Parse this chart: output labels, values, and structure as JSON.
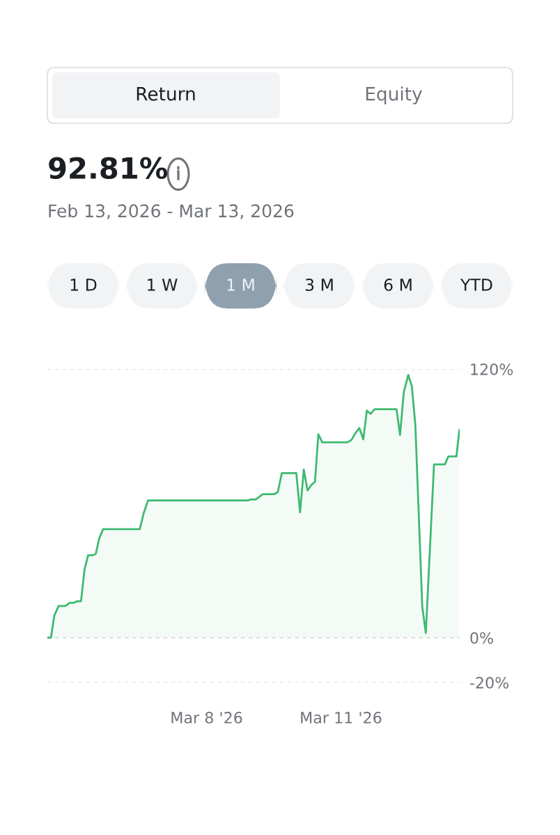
{
  "chart_data": {
    "type": "area",
    "title": "92.81%",
    "subtitle": "Feb 13, 2026 - Mar 13, 2026",
    "annotations": [
      "Return",
      "Equity",
      "1 D",
      "1 W",
      "1 M",
      "3 M",
      "6 M",
      "YTD"
    ],
    "x": [
      "2026-03-04T10:40",
      "2026-03-04T12:35",
      "2026-03-04T14:24",
      "2026-03-04T16:42",
      "2026-03-04T20:24",
      "2026-03-04T22:36",
      "2026-03-05T00:48",
      "2026-03-05T02:36",
      "2026-03-05T04:42",
      "2026-03-05T06:36",
      "2026-03-05T08:30",
      "2026-03-05T10:42",
      "2026-03-05T12:36",
      "2026-03-05T14:24",
      "2026-03-05T16:30",
      "2026-03-06T12:12",
      "2026-03-06T14:18",
      "2026-03-06T16:36",
      "2026-03-08T22:00",
      "2026-03-08T23:54",
      "2026-03-09T02:24",
      "2026-03-09T06:06",
      "2026-03-09T12:06",
      "2026-03-09T14:12",
      "2026-03-09T16:18",
      "2026-03-10T00:06",
      "2026-03-10T02:06",
      "2026-03-10T04:06",
      "2026-03-10T06:06",
      "2026-03-10T08:12",
      "2026-03-10T10:06",
      "2026-03-10T11:54",
      "2026-03-10T14:00",
      "2026-03-11T03:30",
      "2026-03-11T05:36",
      "2026-03-11T07:48",
      "2026-03-11T09:54",
      "2026-03-11T12:00",
      "2026-03-11T13:54",
      "2026-03-11T15:54",
      "2026-03-11T18:00",
      "2026-03-12T05:48",
      "2026-03-12T07:42",
      "2026-03-12T09:42",
      "2026-03-12T12:06",
      "2026-03-12T14:00",
      "2026-03-12T15:54",
      "2026-03-12T19:36",
      "2026-03-12T21:30",
      "2026-03-13T01:54",
      "2026-03-13T07:42",
      "2026-03-13T09:36",
      "2026-03-13T13:54",
      "2026-03-13T15:30"
    ],
    "series": [
      {
        "color": "#3dba6f",
        "values": [
          0,
          0,
          9.9,
          14.2,
          14.2,
          15.6,
          15.6,
          16.3,
          16.3,
          30.6,
          36.8,
          36.8,
          37.4,
          44.2,
          48.5,
          48.5,
          55.6,
          61.3,
          61.3,
          61.8,
          61.8,
          64.1,
          64.1,
          65.1,
          73.5,
          73.5,
          56.0,
          75.1,
          65.8,
          68.3,
          69.6,
          90.9,
          87.3,
          87.3,
          88.3,
          91.4,
          93.7,
          88.6,
          101.5,
          100.0,
          102.1,
          102.1,
          90.6,
          109.6,
          117.4,
          112.5,
          95.1,
          14.0,
          2.1,
          77.4,
          77.4,
          81.0,
          81.0,
          92.8
        ]
      }
    ],
    "xlim": [
      "2026-03-04T10:40",
      "2026-03-13T15:40"
    ],
    "xticks": [
      {
        "value": "2026-03-08",
        "label": "Mar 8 '26"
      },
      {
        "value": "2026-03-11",
        "label": "Mar 11 '26"
      }
    ],
    "ylim": [
      -20,
      120
    ],
    "yticks": [
      {
        "value": 120,
        "label": "120%"
      },
      {
        "value": 0,
        "label": "0%"
      },
      {
        "value": -20,
        "label": "-20%"
      }
    ],
    "grid": "y",
    "line_style": "solid"
  }
}
